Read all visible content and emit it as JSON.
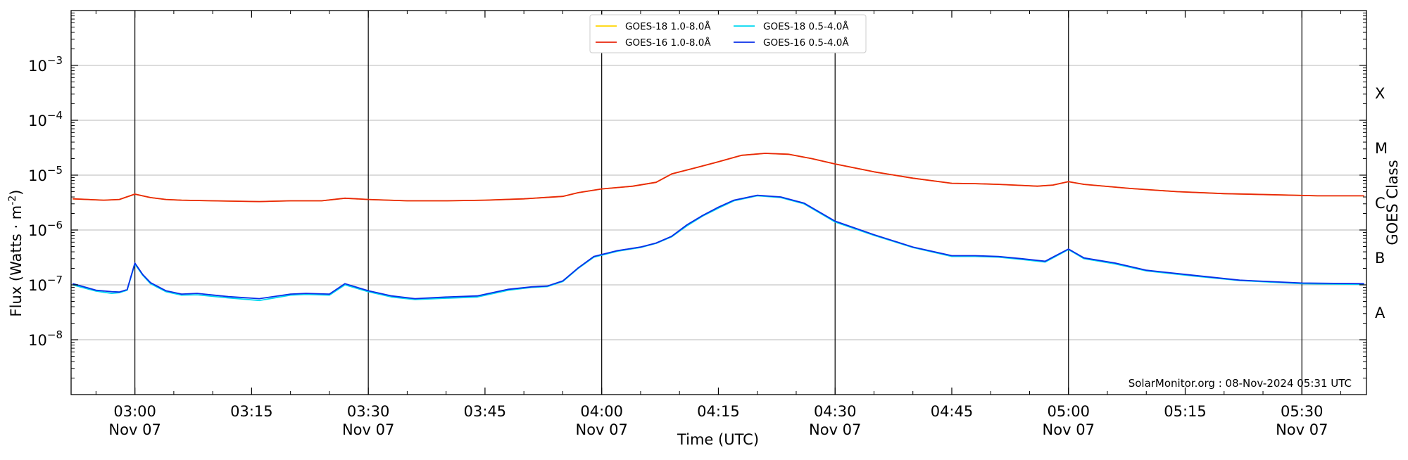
{
  "chart_data": {
    "type": "line",
    "xlabel": "Time (UTC)",
    "ylabel": "Flux (Watts · m",
    "ylabel_sup": "-2",
    "ylabel_close": ")",
    "y_scale": "log",
    "ylim": [
      1e-09,
      0.01
    ],
    "x_range_minutes": [
      -8.2,
      158.3
    ],
    "y_ticks": [
      {
        "base": "10",
        "exp": "−8",
        "value": 1e-08
      },
      {
        "base": "10",
        "exp": "−7",
        "value": 1e-07
      },
      {
        "base": "10",
        "exp": "−6",
        "value": 1e-06
      },
      {
        "base": "10",
        "exp": "−5",
        "value": 1e-05
      },
      {
        "base": "10",
        "exp": "−4",
        "value": 0.0001
      },
      {
        "base": "10",
        "exp": "−3",
        "value": 0.001
      }
    ],
    "x_ticks": [
      {
        "minute": 0,
        "time": "03:00",
        "date": "Nov 07"
      },
      {
        "minute": 15,
        "time": "03:15",
        "date": ""
      },
      {
        "minute": 30,
        "time": "03:30",
        "date": "Nov 07"
      },
      {
        "minute": 45,
        "time": "03:45",
        "date": ""
      },
      {
        "minute": 60,
        "time": "04:00",
        "date": "Nov 07"
      },
      {
        "minute": 75,
        "time": "04:15",
        "date": ""
      },
      {
        "minute": 90,
        "time": "04:30",
        "date": "Nov 07"
      },
      {
        "minute": 105,
        "time": "04:45",
        "date": ""
      },
      {
        "minute": 120,
        "time": "05:00",
        "date": "Nov 07"
      },
      {
        "minute": 135,
        "time": "05:15",
        "date": ""
      },
      {
        "minute": 150,
        "time": "05:30",
        "date": "Nov 07"
      }
    ],
    "vlines_minutes": [
      0,
      30,
      60,
      90,
      120,
      150
    ],
    "right_axis": {
      "label": "GOES Class",
      "classes": [
        {
          "name": "A",
          "value": 3.16e-08
        },
        {
          "name": "B",
          "value": 3.16e-07
        },
        {
          "name": "C",
          "value": 3.16e-06
        },
        {
          "name": "M",
          "value": 3.16e-05
        },
        {
          "name": "X",
          "value": 0.000316
        }
      ]
    },
    "grid": true,
    "legend": "top-center",
    "annotation": "SolarMonitor.org : 08-Nov-2024 05:31 UTC",
    "series": [
      {
        "name": "GOES-18 1.0-8.0Å",
        "color": "#ffd400",
        "column": 0,
        "x": [
          -8,
          -4,
          -2,
          0,
          2,
          4,
          6,
          10,
          16,
          20,
          24,
          27,
          30,
          35,
          40,
          45,
          50,
          55,
          57,
          60,
          64,
          67,
          69,
          72,
          75,
          78,
          81,
          84,
          87,
          90,
          95,
          100,
          105,
          108,
          111,
          114,
          116,
          118,
          120,
          122,
          128,
          134,
          140,
          146,
          152,
          158
        ],
        "y": [
          3.7e-06,
          3.5e-06,
          3.6e-06,
          4.5e-06,
          3.9e-06,
          3.6e-06,
          3.5e-06,
          3.4e-06,
          3.3e-06,
          3.4e-06,
          3.4e-06,
          3.8e-06,
          3.6e-06,
          3.4e-06,
          3.4e-06,
          3.5e-06,
          3.7e-06,
          4.1e-06,
          4.8e-06,
          5.6e-06,
          6.3e-06,
          7.4e-06,
          1.05e-05,
          1.35e-05,
          1.75e-05,
          2.3e-05,
          2.5e-05,
          2.4e-05,
          2e-05,
          1.6e-05,
          1.15e-05,
          8.8e-06,
          7.1e-06,
          7e-06,
          6.8e-06,
          6.5e-06,
          6.3e-06,
          6.6e-06,
          7.6e-06,
          6.8e-06,
          5.7e-06,
          5e-06,
          4.6e-06,
          4.4e-06,
          4.2e-06,
          4.2e-06
        ]
      },
      {
        "name": "GOES-18 0.5-4.0Å",
        "color": "#00d8f0",
        "column": 1,
        "x": [
          -8,
          -5,
          -3,
          -2,
          -1,
          0,
          1,
          2,
          4,
          6,
          8,
          12,
          16,
          20,
          22,
          25,
          27,
          30,
          33,
          36,
          40,
          44,
          48,
          51,
          53,
          55,
          57,
          59,
          62,
          65,
          67,
          69,
          71,
          73,
          75,
          77,
          80,
          83,
          86,
          90,
          95,
          100,
          105,
          108,
          111,
          114,
          117,
          118,
          120,
          122,
          126,
          130,
          136,
          142,
          150,
          158
        ],
        "y": [
          1e-07,
          7.7e-08,
          7e-08,
          7.2e-08,
          8e-08,
          2.4e-07,
          1.5e-07,
          1.05e-07,
          7.5e-08,
          6.5e-08,
          6.6e-08,
          5.8e-08,
          5.2e-08,
          6.5e-08,
          6.7e-08,
          6.5e-08,
          1e-07,
          7.5e-08,
          6e-08,
          5.4e-08,
          5.7e-08,
          6e-08,
          8e-08,
          9e-08,
          9.3e-08,
          1.15e-07,
          2e-07,
          3.2e-07,
          4.1e-07,
          4.8e-07,
          5.7e-07,
          7.5e-07,
          1.2e-06,
          1.8e-06,
          2.5e-06,
          3.4e-06,
          4.2e-06,
          3.9e-06,
          3e-06,
          1.4e-06,
          8e-07,
          4.8e-07,
          3.3e-07,
          3.3e-07,
          3.2e-07,
          2.9e-07,
          2.6e-07,
          3.1e-07,
          4.4e-07,
          3e-07,
          2.4e-07,
          1.8e-07,
          1.45e-07,
          1.2e-07,
          1.05e-07,
          1.02e-07
        ]
      },
      {
        "name": "GOES-16 1.0-8.0Å",
        "color": "#e8260c",
        "column": 0,
        "x": [
          -8,
          -4,
          -2,
          0,
          2,
          4,
          6,
          10,
          16,
          20,
          24,
          27,
          30,
          35,
          40,
          45,
          50,
          55,
          57,
          60,
          64,
          67,
          69,
          72,
          75,
          78,
          81,
          84,
          87,
          90,
          95,
          100,
          105,
          108,
          111,
          114,
          116,
          118,
          120,
          122,
          128,
          134,
          140,
          146,
          152,
          158
        ],
        "y": [
          3.7e-06,
          3.5e-06,
          3.6e-06,
          4.5e-06,
          3.9e-06,
          3.6e-06,
          3.5e-06,
          3.4e-06,
          3.3e-06,
          3.4e-06,
          3.4e-06,
          3.8e-06,
          3.6e-06,
          3.4e-06,
          3.4e-06,
          3.5e-06,
          3.7e-06,
          4.1e-06,
          4.8e-06,
          5.6e-06,
          6.3e-06,
          7.4e-06,
          1.05e-05,
          1.35e-05,
          1.75e-05,
          2.3e-05,
          2.5e-05,
          2.4e-05,
          2e-05,
          1.6e-05,
          1.15e-05,
          8.8e-06,
          7.1e-06,
          7e-06,
          6.8e-06,
          6.5e-06,
          6.3e-06,
          6.6e-06,
          7.6e-06,
          6.8e-06,
          5.7e-06,
          5e-06,
          4.6e-06,
          4.4e-06,
          4.2e-06,
          4.2e-06
        ]
      },
      {
        "name": "GOES-16 0.5-4.0Å",
        "color": "#0a2ee8",
        "column": 1,
        "x": [
          -8,
          -5,
          -3,
          -2,
          -1,
          0,
          1,
          2,
          4,
          6,
          8,
          12,
          16,
          20,
          22,
          25,
          27,
          30,
          33,
          36,
          40,
          44,
          48,
          51,
          53,
          55,
          57,
          59,
          62,
          65,
          67,
          69,
          71,
          73,
          75,
          77,
          80,
          83,
          86,
          90,
          95,
          100,
          105,
          108,
          111,
          114,
          117,
          118,
          120,
          122,
          126,
          130,
          136,
          142,
          150,
          158
        ],
        "y": [
          1.05e-07,
          8e-08,
          7.5e-08,
          7.4e-08,
          8.2e-08,
          2.5e-07,
          1.55e-07,
          1.1e-07,
          7.8e-08,
          6.8e-08,
          7e-08,
          6.1e-08,
          5.6e-08,
          6.8e-08,
          7e-08,
          6.8e-08,
          1.05e-07,
          7.8e-08,
          6.3e-08,
          5.6e-08,
          6e-08,
          6.3e-08,
          8.3e-08,
          9.2e-08,
          9.5e-08,
          1.18e-07,
          2.05e-07,
          3.3e-07,
          4.2e-07,
          4.9e-07,
          5.8e-07,
          7.7e-07,
          1.25e-06,
          1.85e-06,
          2.6e-06,
          3.5e-06,
          4.3e-06,
          4e-06,
          3.1e-06,
          1.45e-06,
          8.2e-07,
          4.9e-07,
          3.4e-07,
          3.4e-07,
          3.3e-07,
          3e-07,
          2.7e-07,
          3.2e-07,
          4.5e-07,
          3.1e-07,
          2.5e-07,
          1.85e-07,
          1.5e-07,
          1.22e-07,
          1.08e-07,
          1.05e-07
        ]
      }
    ]
  }
}
